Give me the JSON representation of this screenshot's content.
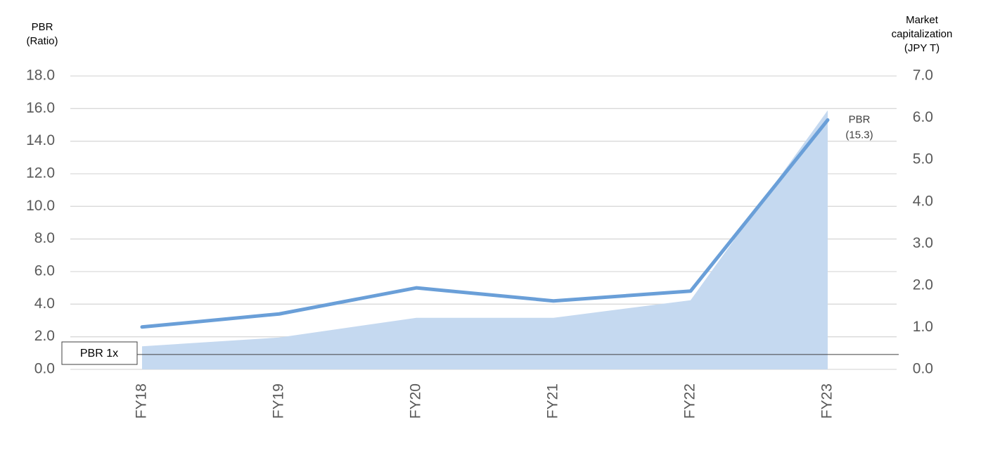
{
  "chart_data": {
    "type": "line-area",
    "y_label": [
      "PBR",
      "(Ratio)"
    ],
    "y2_label": [
      "Market",
      "capitalization",
      "(JPY T)"
    ],
    "categories": [
      "FY18",
      "FY19",
      "FY20",
      "FY21",
      "FY22",
      "FY23"
    ],
    "series": [
      {
        "name": "Market capitalization",
        "type": "area",
        "axis": "y2",
        "color": "#c5d9f0",
        "values": [
          0.55,
          0.76,
          1.23,
          1.23,
          1.65,
          6.18
        ]
      },
      {
        "name": "PBR",
        "type": "line",
        "color": "#6a9fd8",
        "values": [
          2.6,
          3.4,
          5.0,
          4.2,
          4.8,
          15.3
        ],
        "value_labels": [
          null,
          null,
          null,
          null,
          null,
          "(15.3)"
        ]
      }
    ],
    "ylim": [
      0,
      18
    ],
    "yticks": [
      {
        "value": 0,
        "label": "0.0"
      },
      {
        "value": 2,
        "label": "2.0"
      },
      {
        "value": 4,
        "label": "4.0"
      },
      {
        "value": 6,
        "label": "6.0"
      },
      {
        "value": 8,
        "label": "8.0"
      },
      {
        "value": 10,
        "label": "10.0"
      },
      {
        "value": 12,
        "label": "12.0"
      },
      {
        "value": 14,
        "label": "14.0"
      },
      {
        "value": 16,
        "label": "16.0"
      },
      {
        "value": 18,
        "label": "18.0"
      }
    ],
    "y2lim": [
      0,
      7
    ],
    "y2ticks": [
      {
        "value": 0,
        "label": "0.0"
      },
      {
        "value": 1,
        "label": "1.0"
      },
      {
        "value": 2,
        "label": "2.0"
      },
      {
        "value": 3,
        "label": "3.0"
      },
      {
        "value": 4,
        "label": "4.0"
      },
      {
        "value": 5,
        "label": "5.0"
      },
      {
        "value": 6,
        "label": "6.0"
      },
      {
        "value": 7,
        "label": "7.0"
      }
    ],
    "grid": true,
    "reference_line": {
      "value": 1,
      "label": "PBR 1x"
    }
  }
}
